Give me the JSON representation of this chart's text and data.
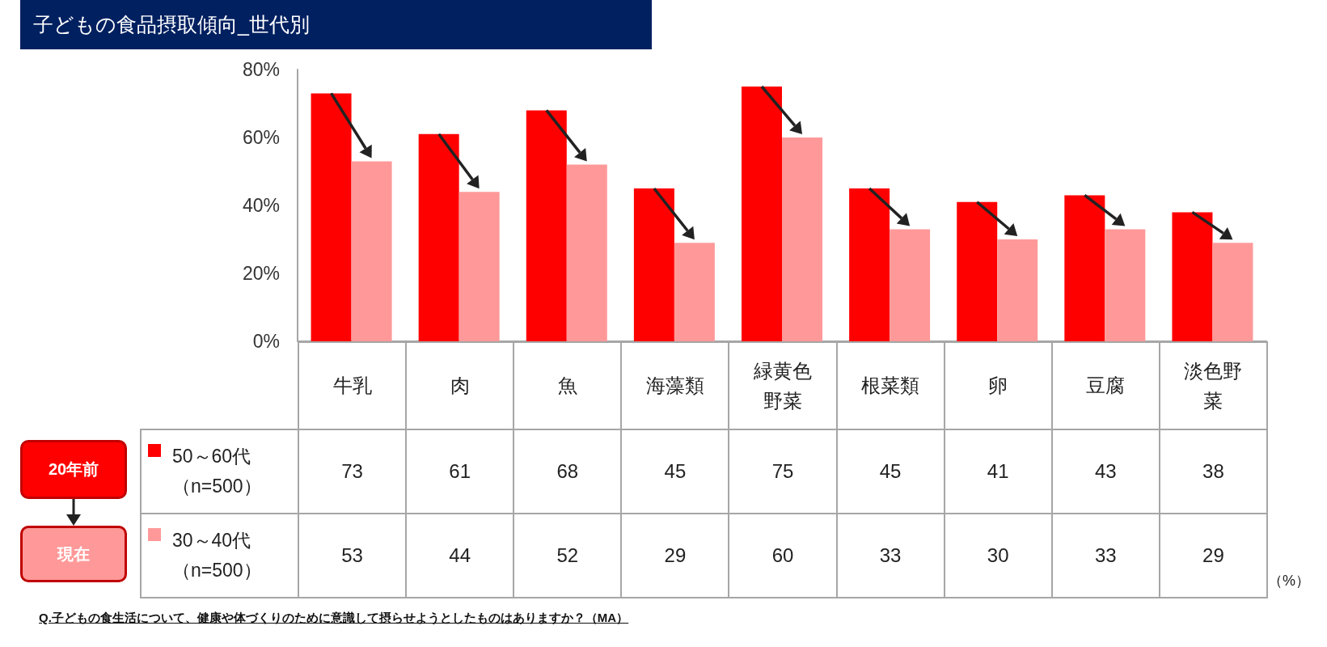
{
  "chart_data": {
    "type": "bar",
    "title": "子どもの食品摂取傾向_世代別",
    "categories": [
      "牛乳",
      "肉",
      "魚",
      "海藻類",
      "緑黄色野菜",
      "根菜類",
      "卵",
      "豆腐",
      "淡色野菜"
    ],
    "series": [
      {
        "name": "50～60代（n=500）",
        "color": "#ff0000",
        "values": [
          73,
          61,
          68,
          45,
          75,
          45,
          41,
          43,
          38
        ]
      },
      {
        "name": "30～40代（n=500）",
        "color": "#ff9999",
        "values": [
          53,
          44,
          52,
          29,
          60,
          33,
          30,
          33,
          29
        ]
      }
    ],
    "ylim": [
      0,
      80
    ],
    "yticks": [
      {
        "value": 0,
        "label": "0%"
      },
      {
        "value": 20,
        "label": "20%"
      },
      {
        "value": 40,
        "label": "40%"
      },
      {
        "value": 60,
        "label": "60%"
      },
      {
        "value": 80,
        "label": "80%"
      }
    ],
    "grid": false,
    "legend": "bottom left",
    "data_labels": true,
    "annotations": [
      "20年前",
      "現在",
      "（%）",
      "Q.子どもの食生活について、健康や体づくりのために意識して摂らせようとしたものはありますか？（MA）"
    ]
  }
}
